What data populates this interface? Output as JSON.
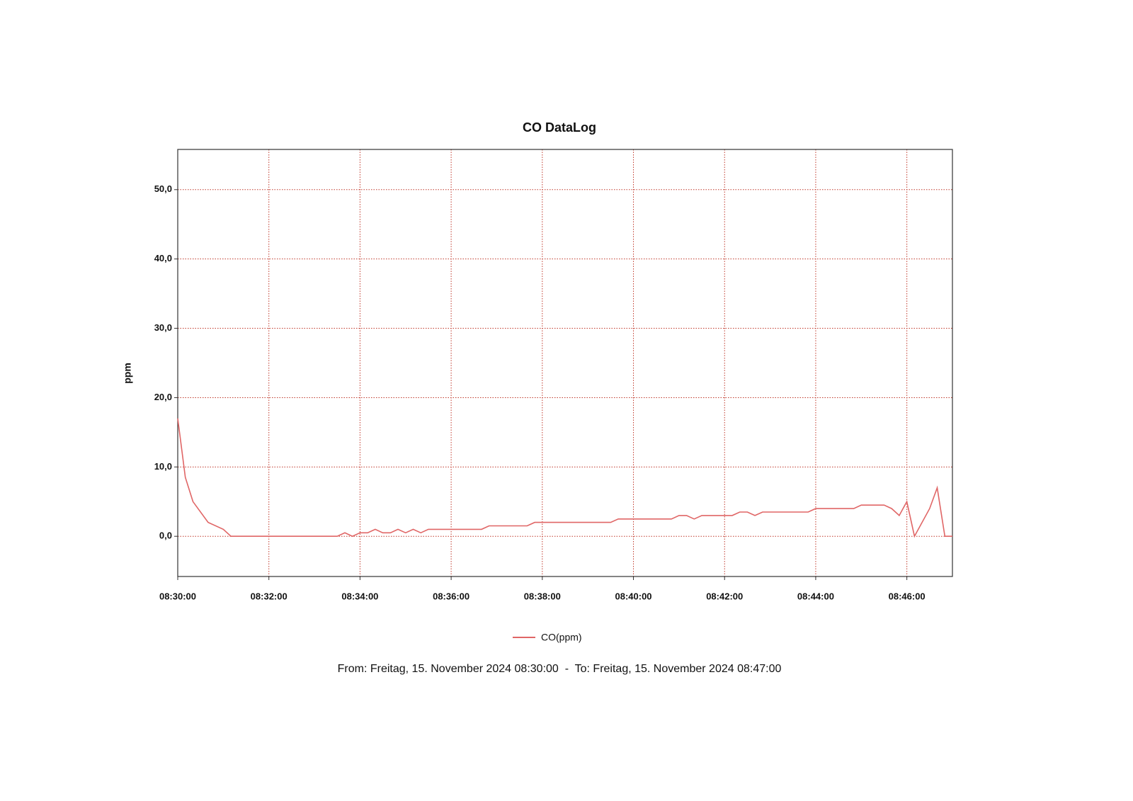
{
  "chart_data": {
    "type": "line",
    "title": "CO DataLog",
    "y_label": "ppm",
    "footer": "From: Freitag, 15. November 2024 08:30:00  -  To: Freitag, 15. November 2024 08:47:00",
    "x": [
      "08:30:00",
      "08:30:10",
      "08:30:20",
      "08:30:40",
      "08:31:00",
      "08:31:10",
      "08:33:30",
      "08:33:40",
      "08:33:50",
      "08:34:00",
      "08:34:10",
      "08:34:20",
      "08:34:30",
      "08:34:40",
      "08:34:50",
      "08:35:00",
      "08:35:10",
      "08:35:20",
      "08:35:30",
      "08:36:40",
      "08:36:50",
      "08:37:40",
      "08:37:50",
      "08:39:30",
      "08:39:40",
      "08:40:50",
      "08:41:00",
      "08:41:10",
      "08:41:20",
      "08:41:30",
      "08:42:10",
      "08:42:20",
      "08:42:30",
      "08:42:40",
      "08:42:50",
      "08:43:50",
      "08:44:00",
      "08:44:50",
      "08:45:00",
      "08:45:30",
      "08:45:40",
      "08:45:50",
      "08:46:00",
      "08:46:10",
      "08:46:30",
      "08:46:40",
      "08:46:50",
      "08:47:00"
    ],
    "series": [
      {
        "name": "CO(ppm)",
        "color": "#e06666",
        "values": [
          17,
          8.5,
          5,
          2,
          1,
          0,
          0,
          0.5,
          0,
          0.5,
          0.5,
          1,
          0.5,
          0.5,
          1,
          0.5,
          1,
          0.5,
          1,
          1,
          1.5,
          1.5,
          2,
          2,
          2.5,
          2.5,
          3,
          3,
          2.5,
          3,
          3,
          3.5,
          3.5,
          3,
          3.5,
          3.5,
          4,
          4,
          4.5,
          4.5,
          4,
          3,
          5,
          0,
          4,
          7,
          0,
          0
        ]
      }
    ],
    "xlim": [
      "08:30:00",
      "08:47:00"
    ],
    "xticks": [
      "08:30:00",
      "08:32:00",
      "08:34:00",
      "08:36:00",
      "08:38:00",
      "08:40:00",
      "08:42:00",
      "08:44:00",
      "08:46:00"
    ],
    "ylim": [
      -5.8,
      55.8
    ],
    "yticks": [
      {
        "value": 0,
        "label": "0,0"
      },
      {
        "value": 10,
        "label": "10,0"
      },
      {
        "value": 20,
        "label": "20,0"
      },
      {
        "value": 30,
        "label": "30,0"
      },
      {
        "value": 40,
        "label": "40,0"
      },
      {
        "value": 50,
        "label": "50,0"
      }
    ],
    "grid": true,
    "grid_color": "#c0392b",
    "legend": "bottom"
  }
}
